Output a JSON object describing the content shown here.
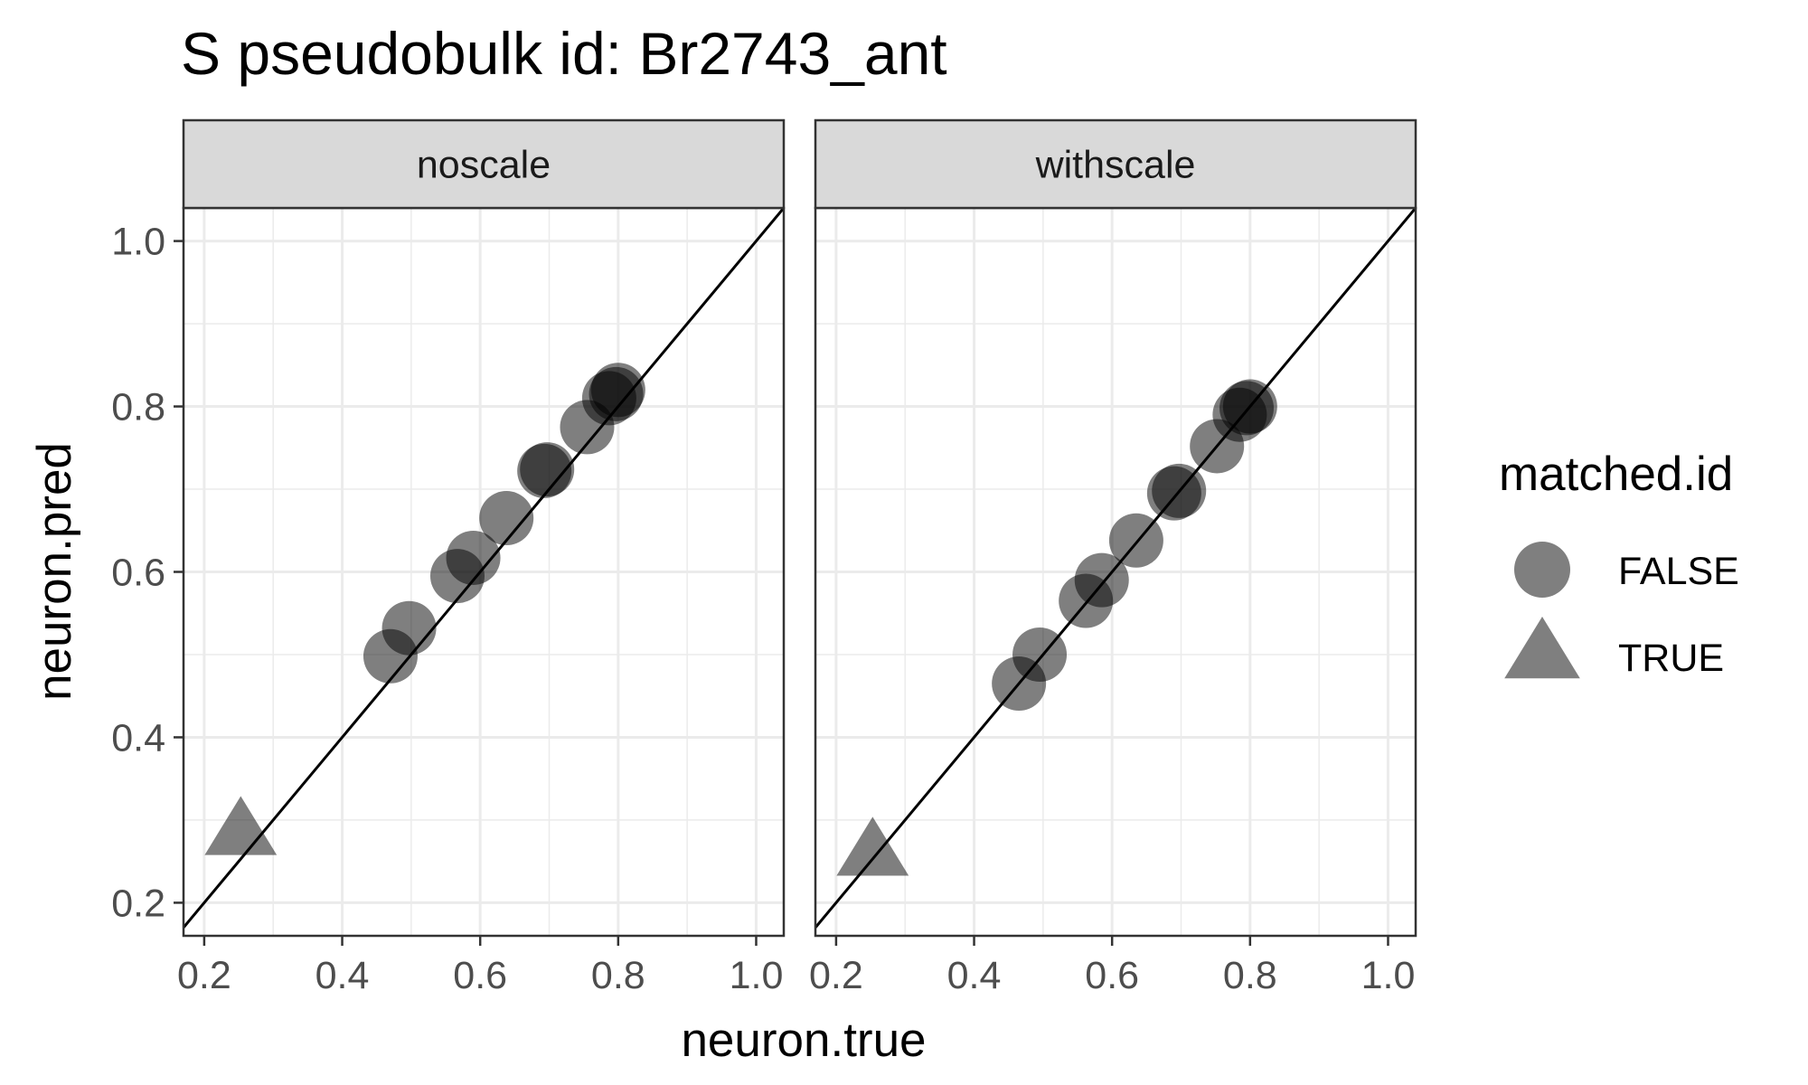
{
  "chart_data": {
    "type": "scatter",
    "title": "S pseudobulk id: Br2743_ant",
    "xlabel": "neuron.true",
    "ylabel": "neuron.pred",
    "xlim": [
      0.17,
      1.04
    ],
    "ylim": [
      0.16,
      1.04
    ],
    "x_ticks": [
      "0.2",
      "0.4",
      "0.6",
      "0.8",
      "1.0"
    ],
    "y_ticks": [
      "0.2",
      "0.4",
      "0.6",
      "0.8",
      "1.0"
    ],
    "x_tick_values": [
      0.2,
      0.4,
      0.6,
      0.8,
      1.0
    ],
    "y_tick_values": [
      0.2,
      0.4,
      0.6,
      0.8,
      1.0
    ],
    "grid": true,
    "reference_line": "y = x",
    "point_color": "#000000",
    "point_alpha": 0.5,
    "legend": {
      "title": "matched.id",
      "position": "right",
      "entries": [
        {
          "label": "FALSE",
          "shape": "circle"
        },
        {
          "label": "TRUE",
          "shape": "triangle"
        }
      ]
    },
    "panels": [
      {
        "label": "noscale",
        "points": [
          {
            "x": 0.253,
            "y": 0.283,
            "matched": true
          },
          {
            "x": 0.47,
            "y": 0.498,
            "matched": false
          },
          {
            "x": 0.497,
            "y": 0.532,
            "matched": false
          },
          {
            "x": 0.567,
            "y": 0.595,
            "matched": false
          },
          {
            "x": 0.59,
            "y": 0.617,
            "matched": false
          },
          {
            "x": 0.638,
            "y": 0.665,
            "matched": false
          },
          {
            "x": 0.693,
            "y": 0.722,
            "matched": false
          },
          {
            "x": 0.697,
            "y": 0.724,
            "matched": false
          },
          {
            "x": 0.755,
            "y": 0.775,
            "matched": false
          },
          {
            "x": 0.787,
            "y": 0.81,
            "matched": false
          },
          {
            "x": 0.797,
            "y": 0.815,
            "matched": false
          },
          {
            "x": 0.8,
            "y": 0.82,
            "matched": false
          }
        ]
      },
      {
        "label": "withscale",
        "points": [
          {
            "x": 0.253,
            "y": 0.258,
            "matched": true
          },
          {
            "x": 0.465,
            "y": 0.465,
            "matched": false
          },
          {
            "x": 0.495,
            "y": 0.5,
            "matched": false
          },
          {
            "x": 0.562,
            "y": 0.565,
            "matched": false
          },
          {
            "x": 0.585,
            "y": 0.59,
            "matched": false
          },
          {
            "x": 0.635,
            "y": 0.638,
            "matched": false
          },
          {
            "x": 0.69,
            "y": 0.695,
            "matched": false
          },
          {
            "x": 0.697,
            "y": 0.698,
            "matched": false
          },
          {
            "x": 0.752,
            "y": 0.752,
            "matched": false
          },
          {
            "x": 0.785,
            "y": 0.79,
            "matched": false
          },
          {
            "x": 0.795,
            "y": 0.798,
            "matched": false
          },
          {
            "x": 0.8,
            "y": 0.8,
            "matched": false
          }
        ]
      }
    ]
  }
}
